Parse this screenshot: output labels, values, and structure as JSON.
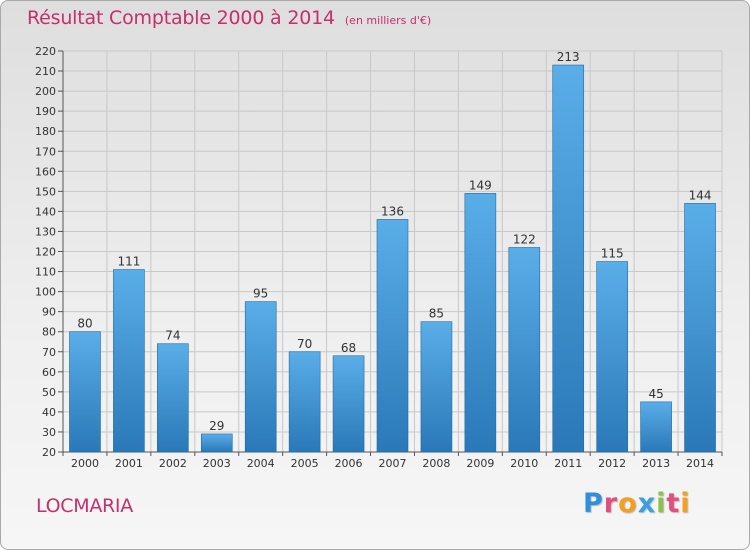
{
  "title": "Résultat Comptable 2000 à 2014",
  "subtitle": "(en milliers d'€)",
  "commune": "LOCMARIA",
  "logo_letters": [
    "P",
    "r",
    "o",
    "x",
    "i",
    "t",
    "i"
  ],
  "colors": {
    "title": "#c4306b",
    "bar_top": "#5aaee8",
    "bar_bottom": "#2a78b8",
    "grid": "#c8c8c8"
  },
  "chart_data": {
    "type": "bar",
    "categories": [
      "2000",
      "2001",
      "2002",
      "2003",
      "2004",
      "2005",
      "2006",
      "2007",
      "2008",
      "2009",
      "2010",
      "2011",
      "2012",
      "2013",
      "2014"
    ],
    "values": [
      80,
      111,
      74,
      29,
      95,
      70,
      68,
      136,
      85,
      149,
      122,
      213,
      115,
      45,
      144
    ],
    "ylim": [
      20,
      220
    ],
    "yticks": [
      20,
      30,
      40,
      50,
      60,
      70,
      80,
      90,
      100,
      110,
      120,
      130,
      140,
      150,
      160,
      170,
      180,
      190,
      200,
      210,
      220
    ],
    "grid": true,
    "data_labels": true
  }
}
